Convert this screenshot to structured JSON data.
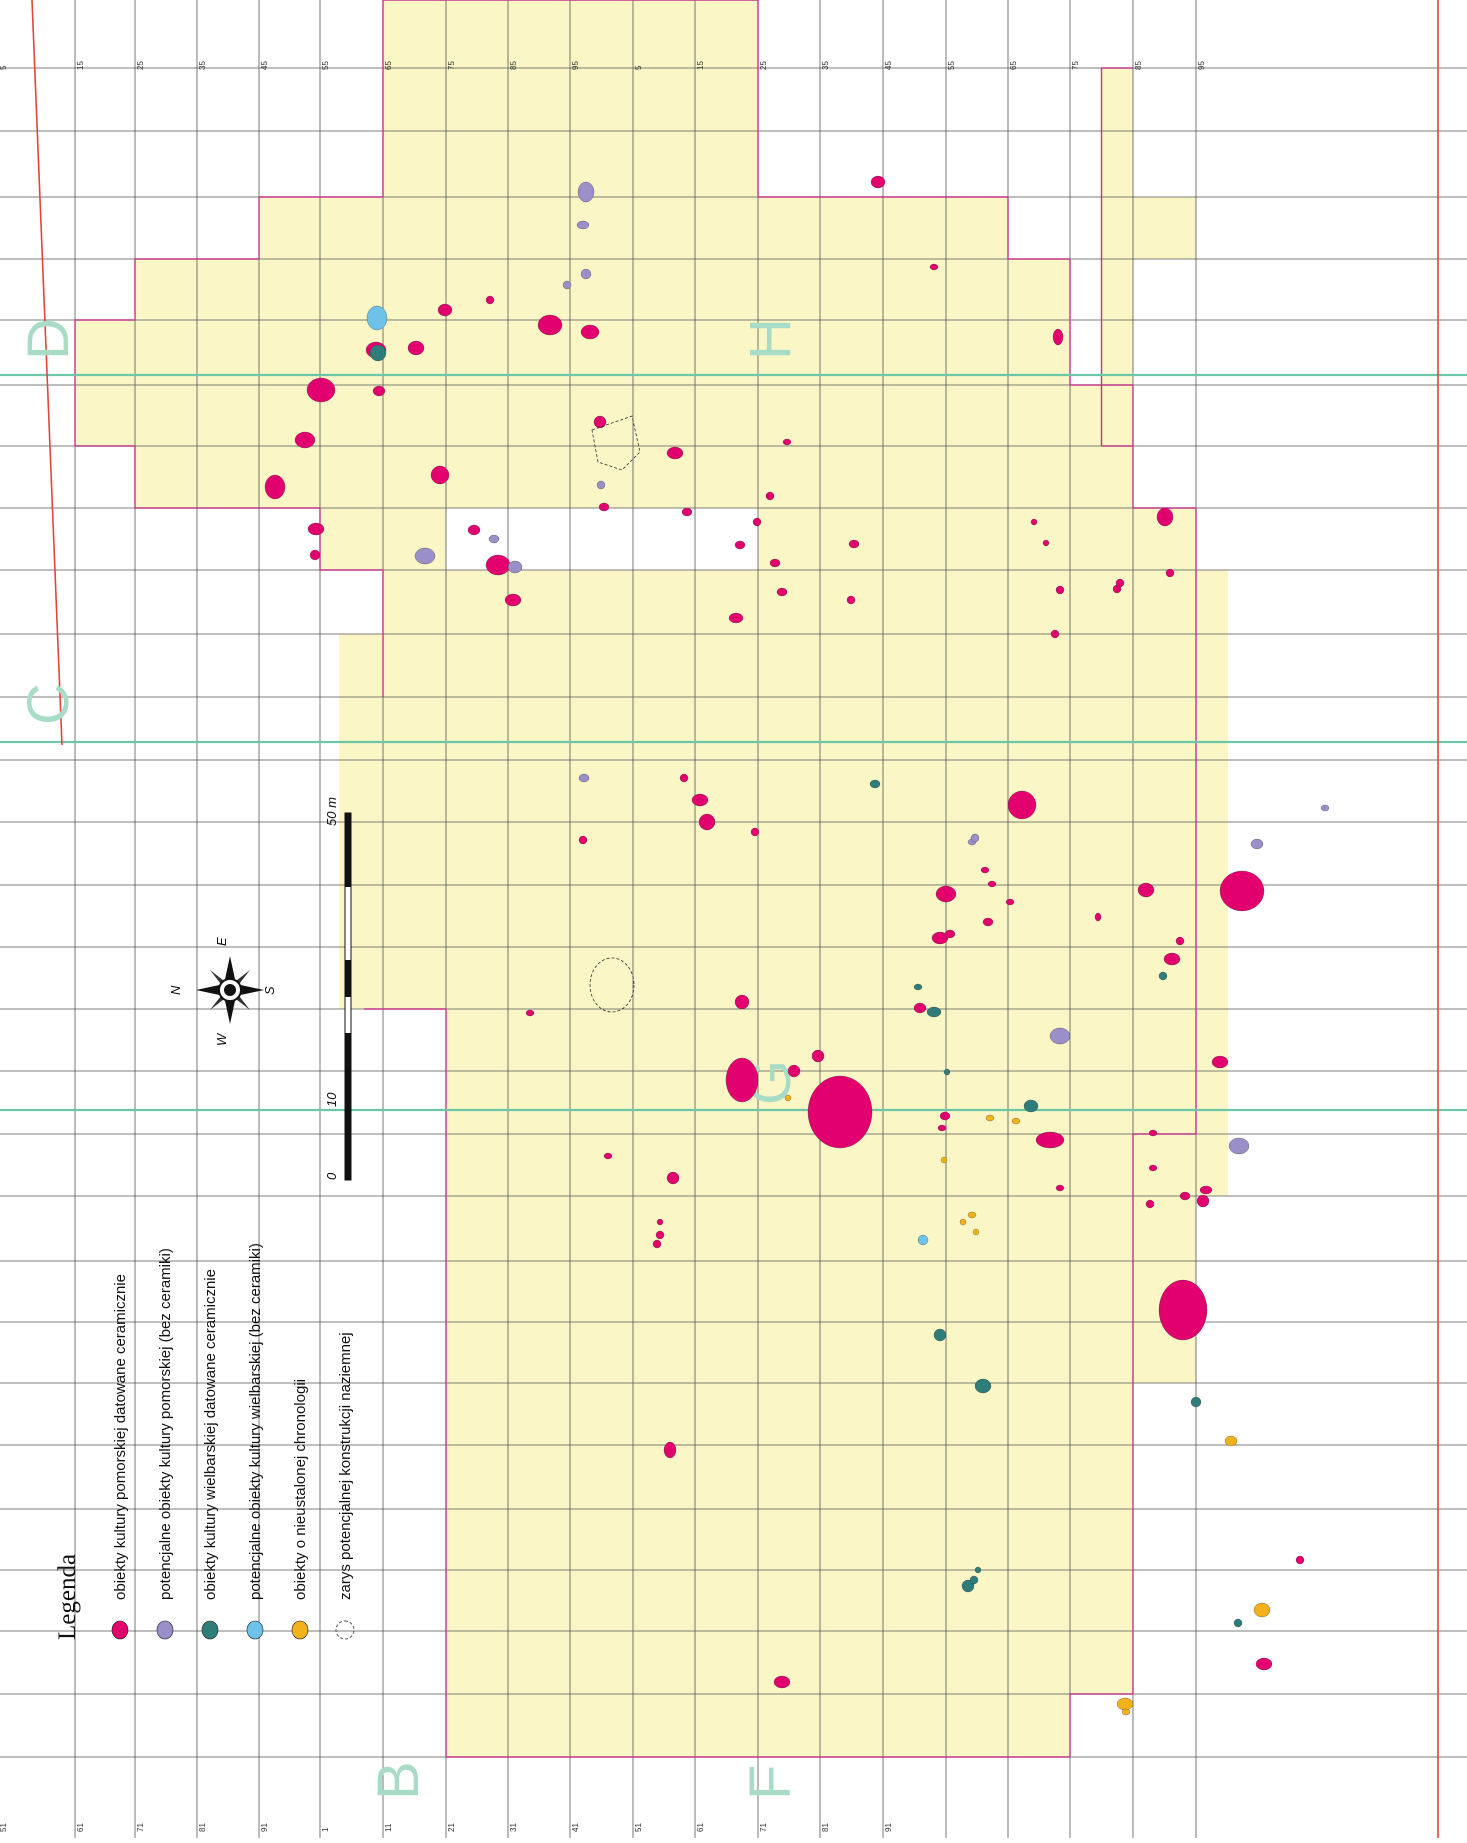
{
  "legend": {
    "title": "Legenda",
    "items": [
      {
        "label": "obiekty kultury pomorskiej datowane ceramicznie",
        "color": "#e2006e",
        "kind": "dot"
      },
      {
        "label": "potencjalne obiekty kultury pomorskiej (bez ceramiki)",
        "color": "#9a8fc8",
        "kind": "dot"
      },
      {
        "label": "obiekty kultury wielbarskiej datowane ceramicznie",
        "color": "#2e7d7a",
        "kind": "dot"
      },
      {
        "label": "potencjalne obiekty kultury wielbarskiej (bez ceramiki)",
        "color": "#6ec2ea",
        "kind": "dot"
      },
      {
        "label": "obiekty o nieustalonej chronologii",
        "color": "#f2b21c",
        "kind": "dot"
      },
      {
        "label": "zarys potencjalnej konstrukcji naziemnej",
        "color": "#555555",
        "kind": "dashed"
      }
    ]
  },
  "scale": {
    "labels": [
      "0",
      "10",
      "50 m"
    ]
  },
  "compass": {
    "N": "N",
    "E": "E",
    "S": "S",
    "W": "W"
  },
  "sector_letters": [
    "B",
    "C",
    "D",
    "F",
    "G",
    "H"
  ],
  "colors": {
    "excavated": "#fbf6c6",
    "excavated_border": "#c0368a",
    "grid": "#555555",
    "sector_line": "#6cc6a8",
    "boundary": "#e3443c",
    "pomorska": "#e2006e",
    "pomorska_pot": "#9a8fc8",
    "wielbarska": "#2e7d7a",
    "wielbarska_pot": "#6ec2ea",
    "nieustalona": "#f2b21c",
    "letter": "#a9dcc6"
  }
}
